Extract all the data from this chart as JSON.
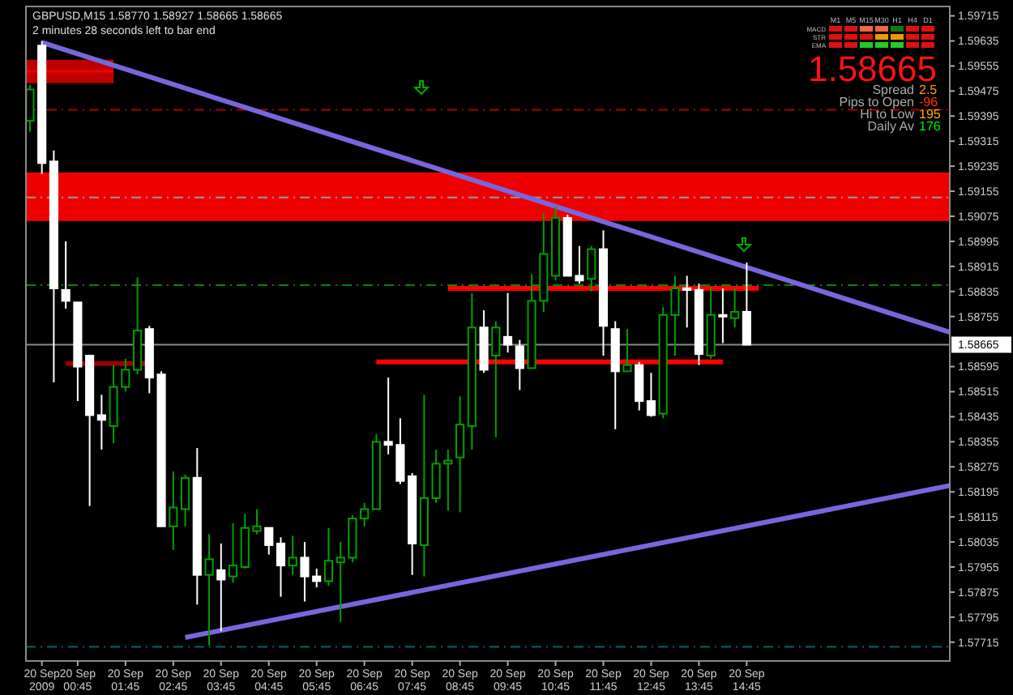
{
  "chart_data": {
    "type": "candlestick",
    "title": "GBPUSD,M15  1.58770 1.58927 1.58665 1.58665",
    "subtitle": "2 minutes 28 seconds left to bar end",
    "x": [
      "2009-09-19T23:45",
      "2009-09-20T00:00",
      "2009-09-20T00:15",
      "2009-09-20T00:30",
      "2009-09-20T00:45",
      "2009-09-20T01:00",
      "2009-09-20T01:15",
      "2009-09-20T01:30",
      "2009-09-20T01:45",
      "2009-09-20T02:00",
      "2009-09-20T02:15",
      "2009-09-20T02:30",
      "2009-09-20T02:45",
      "2009-09-20T03:00",
      "2009-09-20T03:15",
      "2009-09-20T03:30",
      "2009-09-20T03:45",
      "2009-09-20T04:00",
      "2009-09-20T04:15",
      "2009-09-20T04:30",
      "2009-09-20T04:45",
      "2009-09-20T05:00",
      "2009-09-20T05:15",
      "2009-09-20T05:30",
      "2009-09-20T05:45",
      "2009-09-20T06:00",
      "2009-09-20T06:15",
      "2009-09-20T06:30",
      "2009-09-20T06:45",
      "2009-09-20T07:00",
      "2009-09-20T07:15",
      "2009-09-20T07:30",
      "2009-09-20T07:45",
      "2009-09-20T08:00",
      "2009-09-20T08:15",
      "2009-09-20T08:30",
      "2009-09-20T08:45",
      "2009-09-20T09:00",
      "2009-09-20T09:15",
      "2009-09-20T09:30",
      "2009-09-20T09:45",
      "2009-09-20T10:00",
      "2009-09-20T10:15",
      "2009-09-20T10:30",
      "2009-09-20T10:45",
      "2009-09-20T11:00",
      "2009-09-20T11:15",
      "2009-09-20T11:30",
      "2009-09-20T11:45",
      "2009-09-20T12:00",
      "2009-09-20T12:15",
      "2009-09-20T12:30",
      "2009-09-20T12:45",
      "2009-09-20T13:00",
      "2009-09-20T13:15",
      "2009-09-20T13:30",
      "2009-09-20T13:45",
      "2009-09-20T14:00",
      "2009-09-20T14:15",
      "2009-09-20T14:30",
      "2009-09-20T14:45"
    ],
    "ohlc": [
      [
        1.5938,
        1.59495,
        1.59345,
        1.5948
      ],
      [
        1.5962,
        1.59635,
        1.5921,
        1.59245
      ],
      [
        1.5925,
        1.59285,
        1.58545,
        1.58845
      ],
      [
        1.5884,
        1.58995,
        1.5878,
        1.58805
      ],
      [
        1.588,
        1.588,
        1.58485,
        1.58595
      ],
      [
        1.5863,
        1.5863,
        1.5815,
        1.5844
      ],
      [
        1.5844,
        1.58505,
        1.5833,
        1.58425
      ],
      [
        1.58405,
        1.586,
        1.5835,
        1.5853
      ],
      [
        1.5853,
        1.5862,
        1.58515,
        1.58585
      ],
      [
        1.58585,
        1.5888,
        1.5857,
        1.5871
      ],
      [
        1.58715,
        1.58725,
        1.5851,
        1.5856
      ],
      [
        1.5857,
        1.5858,
        1.58085,
        1.58085
      ],
      [
        1.58085,
        1.5826,
        1.5801,
        1.58145
      ],
      [
        1.5814,
        1.5825,
        1.58085,
        1.5824
      ],
      [
        1.5824,
        1.58335,
        1.57835,
        1.5793
      ],
      [
        1.5793,
        1.5806,
        1.57705,
        1.5798
      ],
      [
        1.57945,
        1.5803,
        1.5775,
        1.57915
      ],
      [
        1.57925,
        1.58095,
        1.57905,
        1.5796
      ],
      [
        1.57955,
        1.58125,
        1.5795,
        1.5808
      ],
      [
        1.5807,
        1.5814,
        1.5806,
        1.58085
      ],
      [
        1.5808,
        1.5808,
        1.57995,
        1.58025
      ],
      [
        1.5803,
        1.5805,
        1.5786,
        1.5796
      ],
      [
        1.5796,
        1.58055,
        1.5793,
        1.57985
      ],
      [
        1.57985,
        1.58035,
        1.57845,
        1.57925
      ],
      [
        1.57925,
        1.5795,
        1.5789,
        1.5791
      ],
      [
        1.5791,
        1.5808,
        1.57895,
        1.57975
      ],
      [
        1.5797,
        1.58035,
        1.5778,
        1.57985
      ],
      [
        1.57985,
        1.5812,
        1.5797,
        1.5811
      ],
      [
        1.5811,
        1.5816,
        1.58085,
        1.5814
      ],
      [
        1.5814,
        1.5838,
        1.5814,
        1.58355
      ],
      [
        1.58355,
        1.5856,
        1.58315,
        1.58345
      ],
      [
        1.58345,
        1.5843,
        1.5822,
        1.5823
      ],
      [
        1.58245,
        1.58255,
        1.5793,
        1.5803
      ],
      [
        1.58025,
        1.58505,
        1.57925,
        1.58175
      ],
      [
        1.58175,
        1.5833,
        1.5816,
        1.58285
      ],
      [
        1.58285,
        1.5833,
        1.58135,
        1.58295
      ],
      [
        1.58305,
        1.585,
        1.5813,
        1.5841
      ],
      [
        1.58405,
        1.5883,
        1.5833,
        1.5872
      ],
      [
        1.5872,
        1.58775,
        1.58575,
        1.58585
      ],
      [
        1.5863,
        1.5874,
        1.5837,
        1.5872
      ],
      [
        1.5869,
        1.5883,
        1.5864,
        1.58665
      ],
      [
        1.5866,
        1.5868,
        1.5852,
        1.5859
      ],
      [
        1.5859,
        1.5889,
        1.5859,
        1.58805
      ],
      [
        1.58805,
        1.59085,
        1.5877,
        1.58955
      ],
      [
        1.58885,
        1.59105,
        1.5887,
        1.5907
      ],
      [
        1.5907,
        1.5908,
        1.58885,
        1.58885
      ],
      [
        1.58885,
        1.5898,
        1.5886,
        1.5887
      ],
      [
        1.58875,
        1.5898,
        1.58835,
        1.5897
      ],
      [
        1.5897,
        1.5903,
        1.5863,
        1.58725
      ],
      [
        1.58715,
        1.5874,
        1.58395,
        1.5858
      ],
      [
        1.5858,
        1.58715,
        1.5858,
        1.586
      ],
      [
        1.586,
        1.5861,
        1.58455,
        1.58485
      ],
      [
        1.58485,
        1.58575,
        1.58435,
        1.5844
      ],
      [
        1.58445,
        1.58785,
        1.5843,
        1.5876
      ],
      [
        1.5876,
        1.58885,
        1.5863,
        1.58845
      ],
      [
        1.58845,
        1.58885,
        1.5872,
        1.5884
      ],
      [
        1.5884,
        1.5886,
        1.586,
        1.58635
      ],
      [
        1.5863,
        1.5885,
        1.5862,
        1.5876
      ],
      [
        1.5876,
        1.58845,
        1.5867,
        1.58755
      ],
      [
        1.5875,
        1.58845,
        1.5872,
        1.5877
      ],
      [
        1.5877,
        1.58927,
        1.58665,
        1.58665
      ]
    ],
    "colors": [
      "#00a000",
      "#ffffff",
      "#ffffff",
      "#ffffff",
      "#ffffff",
      "#ffffff",
      "#ffffff",
      "#00a000",
      "#00a000",
      "#00a000",
      "#ffffff",
      "#ffffff",
      "#00a000",
      "#00a000",
      "#ffffff",
      "#00a000",
      "#ffffff",
      "#00a000",
      "#00a000",
      "#00a000",
      "#ffffff",
      "#ffffff",
      "#00a000",
      "#ffffff",
      "#ffffff",
      "#00a000",
      "#00a000",
      "#00a000",
      "#00a000",
      "#00a000",
      "#ffffff",
      "#ffffff",
      "#ffffff",
      "#00a000",
      "#00a000",
      "#00a000",
      "#00a000",
      "#00a000",
      "#ffffff",
      "#00a000",
      "#ffffff",
      "#ffffff",
      "#00a000",
      "#00a000",
      "#00a000",
      "#ffffff",
      "#ffffff",
      "#00a000",
      "#ffffff",
      "#ffffff",
      "#00a000",
      "#ffffff",
      "#ffffff",
      "#00a000",
      "#00a000",
      "#ffffff",
      "#ffffff",
      "#00a000",
      "#ffffff",
      "#00a000",
      "#ffffff"
    ],
    "series": [
      {
        "type": "line",
        "x": [
          "2009-09-19T23:40",
          "2009-09-20T01:30"
        ],
        "values": [
          1.59538,
          1.59538
        ],
        "lower": [
          1.595,
          1.595
        ],
        "upper": [
          1.59575,
          1.59575
        ],
        "color": "#ee0000"
      },
      {
        "type": "line",
        "x": [
          "2009-09-20T00:30",
          "2009-09-20T02:15"
        ],
        "values": [
          1.58605,
          1.58605
        ],
        "color": "#990000"
      },
      {
        "type": "line",
        "x": [
          "2009-09-20T08:30",
          "2009-09-20T15:00"
        ],
        "values": [
          1.58845,
          1.58845
        ],
        "color": "#ff0000"
      },
      {
        "type": "line",
        "x": [
          "2009-09-20T07:00",
          "2009-09-20T14:15"
        ],
        "values": [
          1.5861,
          1.5861
        ],
        "color": "#ff0000"
      },
      {
        "type": "line",
        "x": [
          "2009-09-20T00:00",
          "2009-09-20T19:00"
        ],
        "values": [
          1.5963,
          1.58705
        ],
        "color": "#7766dd"
      },
      {
        "type": "line",
        "x": [
          "2009-09-20T03:00",
          "2009-09-20T19:00"
        ],
        "values": [
          1.5773,
          1.58215
        ],
        "color": "#7766dd"
      }
    ],
    "bands": [
      {
        "axis": "y",
        "from": 1.5906,
        "to": 1.59215,
        "color": "#ee0000"
      }
    ],
    "ref_lines": [
      {
        "axis": "y",
        "value": 1.59415,
        "color": "#aa0000",
        "line_style": "dashed"
      },
      {
        "axis": "y",
        "value": 1.59135,
        "color": "#999999",
        "line_style": "dashed"
      },
      {
        "axis": "y",
        "value": 1.58855,
        "color": "#008800",
        "line_style": "dashed"
      },
      {
        "axis": "y",
        "value": 1.58665,
        "label": "1.58665",
        "color": "#888888",
        "line_style": "solid"
      },
      {
        "axis": "y",
        "value": 1.577,
        "color": "#006666",
        "line_style": "dashed"
      }
    ],
    "annotations": [
      "M1",
      "M5",
      "M15",
      "M30",
      "H1",
      "H4",
      "D1",
      "MACD",
      "STR",
      "EMA",
      "1.58665",
      "Spread",
      "2.5",
      "Pips to Open",
      "-96",
      "Hi to Low",
      "195",
      "Daily Av",
      "176"
    ],
    "xlim": [
      "2009-09-19T23:40",
      "2009-09-20T19:00"
    ],
    "ylim": [
      1.57655,
      1.59745
    ],
    "xticks": [
      {
        "value": "2009-09-20",
        "label": "20 Sep 2009"
      },
      {
        "value": "2009-09-20T00:45",
        "label": "20 Sep 00:45"
      },
      {
        "value": "2009-09-20T01:45",
        "label": "20 Sep 01:45"
      },
      {
        "value": "2009-09-20T02:45",
        "label": "20 Sep 02:45"
      },
      {
        "value": "2009-09-20T03:45",
        "label": "20 Sep 03:45"
      },
      {
        "value": "2009-09-20T04:45",
        "label": "20 Sep 04:45"
      },
      {
        "value": "2009-09-20T05:45",
        "label": "20 Sep 05:45"
      },
      {
        "value": "2009-09-20T06:45",
        "label": "20 Sep 06:45"
      },
      {
        "value": "2009-09-20T07:45",
        "label": "20 Sep 07:45"
      },
      {
        "value": "2009-09-20T08:45",
        "label": "20 Sep 08:45"
      },
      {
        "value": "2009-09-20T09:45",
        "label": "20 Sep 09:45"
      },
      {
        "value": "2009-09-20T10:45",
        "label": "20 Sep 10:45"
      },
      {
        "value": "2009-09-20T11:45",
        "label": "20 Sep 11:45"
      },
      {
        "value": "2009-09-20T12:45",
        "label": "20 Sep 12:45"
      },
      {
        "value": "2009-09-20T13:45",
        "label": "20 Sep 13:45"
      },
      {
        "value": "2009-09-20T14:45",
        "label": "20 Sep 14:45"
      }
    ],
    "yticks": [
      1.59715,
      1.59635,
      1.59555,
      1.59475,
      1.59395,
      1.59315,
      1.59235,
      1.59155,
      1.59075,
      1.58995,
      1.58915,
      1.58835,
      1.58755,
      1.58595,
      1.58515,
      1.58435,
      1.58355,
      1.58275,
      1.58195,
      1.58115,
      1.58035,
      1.57955,
      1.57875,
      1.57795,
      1.57715
    ]
  }
}
